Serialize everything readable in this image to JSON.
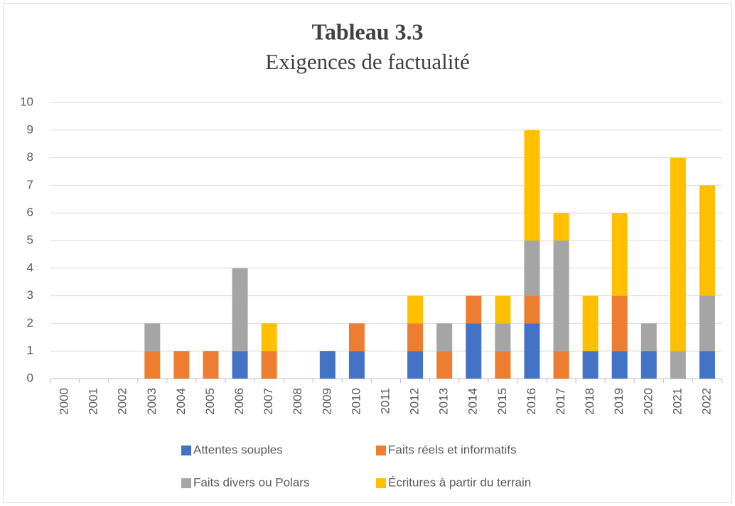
{
  "chart_data": {
    "type": "stacked_bar",
    "title": "Tableau 3.3",
    "subtitle": "Exigences de factualité",
    "categories": [
      "2000",
      "2001",
      "2002",
      "2003",
      "2004",
      "2005",
      "2006",
      "2007",
      "2008",
      "2009",
      "2010",
      "2011",
      "2012",
      "2013",
      "2014",
      "2015",
      "2016",
      "2017",
      "2018",
      "2019",
      "2020",
      "2021",
      "2022"
    ],
    "series": [
      {
        "name": "Attentes souples",
        "color": "#4472c4",
        "values": [
          0,
          0,
          0,
          0,
          0,
          0,
          1,
          0,
          0,
          1,
          1,
          0,
          1,
          0,
          2,
          0,
          2,
          0,
          1,
          1,
          1,
          0,
          1
        ]
      },
      {
        "name": "Faits réels et informatifs",
        "color": "#ed7d31",
        "values": [
          0,
          0,
          0,
          1,
          1,
          1,
          0,
          1,
          0,
          0,
          1,
          0,
          1,
          1,
          1,
          1,
          1,
          1,
          0,
          2,
          0,
          0,
          0
        ]
      },
      {
        "name": "Faits divers ou Polars",
        "color": "#a5a5a5",
        "values": [
          0,
          0,
          0,
          1,
          0,
          0,
          3,
          0,
          0,
          0,
          0,
          0,
          0,
          1,
          0,
          1,
          2,
          4,
          0,
          0,
          1,
          1,
          2
        ]
      },
      {
        "name": "Écritures à partir du terrain",
        "color": "#ffc000",
        "values": [
          0,
          0,
          0,
          0,
          0,
          0,
          0,
          1,
          0,
          0,
          0,
          0,
          1,
          0,
          0,
          1,
          4,
          1,
          2,
          3,
          0,
          7,
          4
        ]
      }
    ],
    "ylim": [
      0,
      10
    ],
    "yticks": [
      0,
      1,
      2,
      3,
      4,
      5,
      6,
      7,
      8,
      9,
      10
    ],
    "grid": true
  }
}
